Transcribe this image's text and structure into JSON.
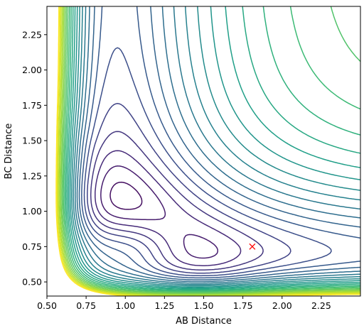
{
  "chart_data": {
    "type": "contour",
    "title": "",
    "xlabel": "AB Distance",
    "ylabel": "BC Distance",
    "xlim": [
      0.5,
      2.5
    ],
    "ylim": [
      0.4,
      2.45
    ],
    "xticks": [
      "0.50",
      "0.75",
      "1.00",
      "1.25",
      "1.50",
      "1.75",
      "2.00",
      "2.25"
    ],
    "yticks": [
      "0.50",
      "0.75",
      "1.00",
      "1.25",
      "1.50",
      "1.75",
      "2.00",
      "2.25"
    ],
    "colormap": "viridis",
    "grid": false,
    "legend": "none",
    "marker": {
      "symbol": "x",
      "color": "#ff0000",
      "x": 1.81,
      "y": 0.75
    }
  }
}
